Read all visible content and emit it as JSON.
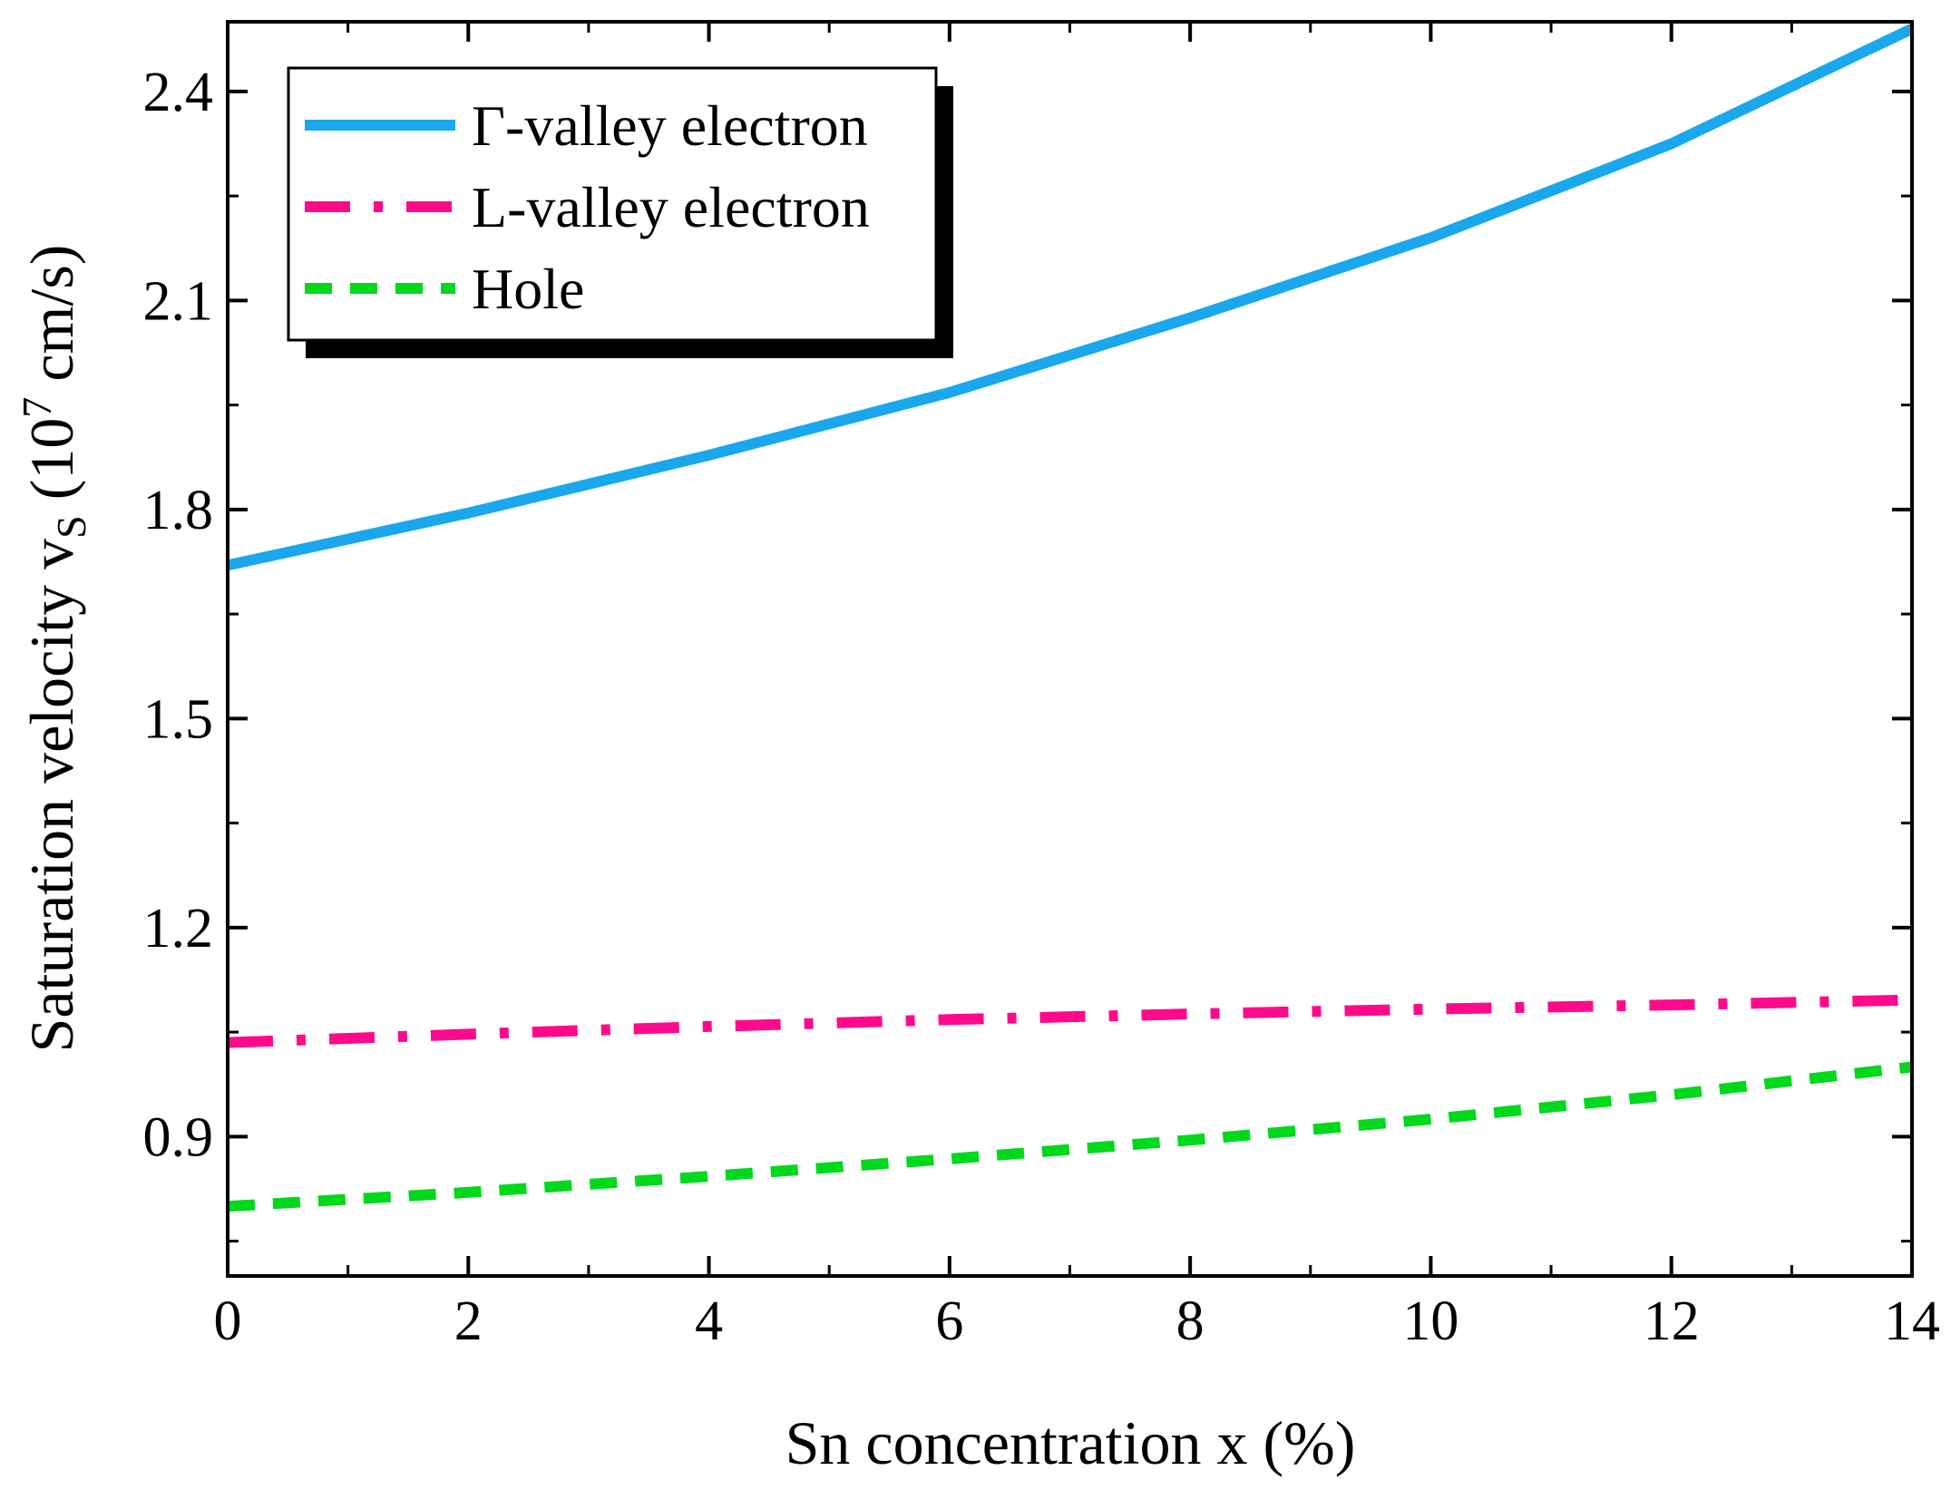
{
  "chart_data": {
    "type": "line",
    "title": "",
    "xlabel": "Sn concentration x (%)",
    "ylabel": {
      "main": "Saturation velocity v",
      "subscript": "S",
      "unit_prefix": " (10",
      "superscript": "7",
      "unit_suffix": " cm/s)"
    },
    "xlim": [
      0,
      14
    ],
    "ylim": [
      0.7,
      2.5
    ],
    "x_ticks": [
      0,
      2,
      4,
      6,
      8,
      10,
      12,
      14
    ],
    "x_tick_labels": [
      "0",
      "2",
      "4",
      "6",
      "8",
      "10",
      "12",
      "14"
    ],
    "y_ticks": [
      0.9,
      1.2,
      1.5,
      1.8,
      2.1,
      2.4
    ],
    "y_tick_labels": [
      "0.9",
      "1.2",
      "1.5",
      "1.8",
      "2.1",
      "2.4"
    ],
    "grid": false,
    "legend_position": "top-left",
    "series": [
      {
        "name": "Γ-valley electron",
        "color": "#1aa7ec",
        "style": "solid",
        "x": [
          0,
          2,
          4,
          6,
          8,
          10,
          12,
          14
        ],
        "values": [
          1.72,
          1.795,
          1.878,
          1.968,
          2.075,
          2.19,
          2.325,
          2.49
        ]
      },
      {
        "name": "L-valley electron",
        "color": "#ff0a8c",
        "style": "dash-dot",
        "x": [
          0,
          2,
          4,
          6,
          8,
          10,
          12,
          14
        ],
        "values": [
          1.035,
          1.047,
          1.058,
          1.068,
          1.076,
          1.083,
          1.089,
          1.096
        ]
      },
      {
        "name": "Hole",
        "color": "#00d81c",
        "style": "dashed",
        "x": [
          0,
          2,
          4,
          6,
          8,
          10,
          12,
          14
        ],
        "values": [
          0.8,
          0.82,
          0.843,
          0.868,
          0.895,
          0.925,
          0.96,
          1.0
        ]
      }
    ]
  }
}
